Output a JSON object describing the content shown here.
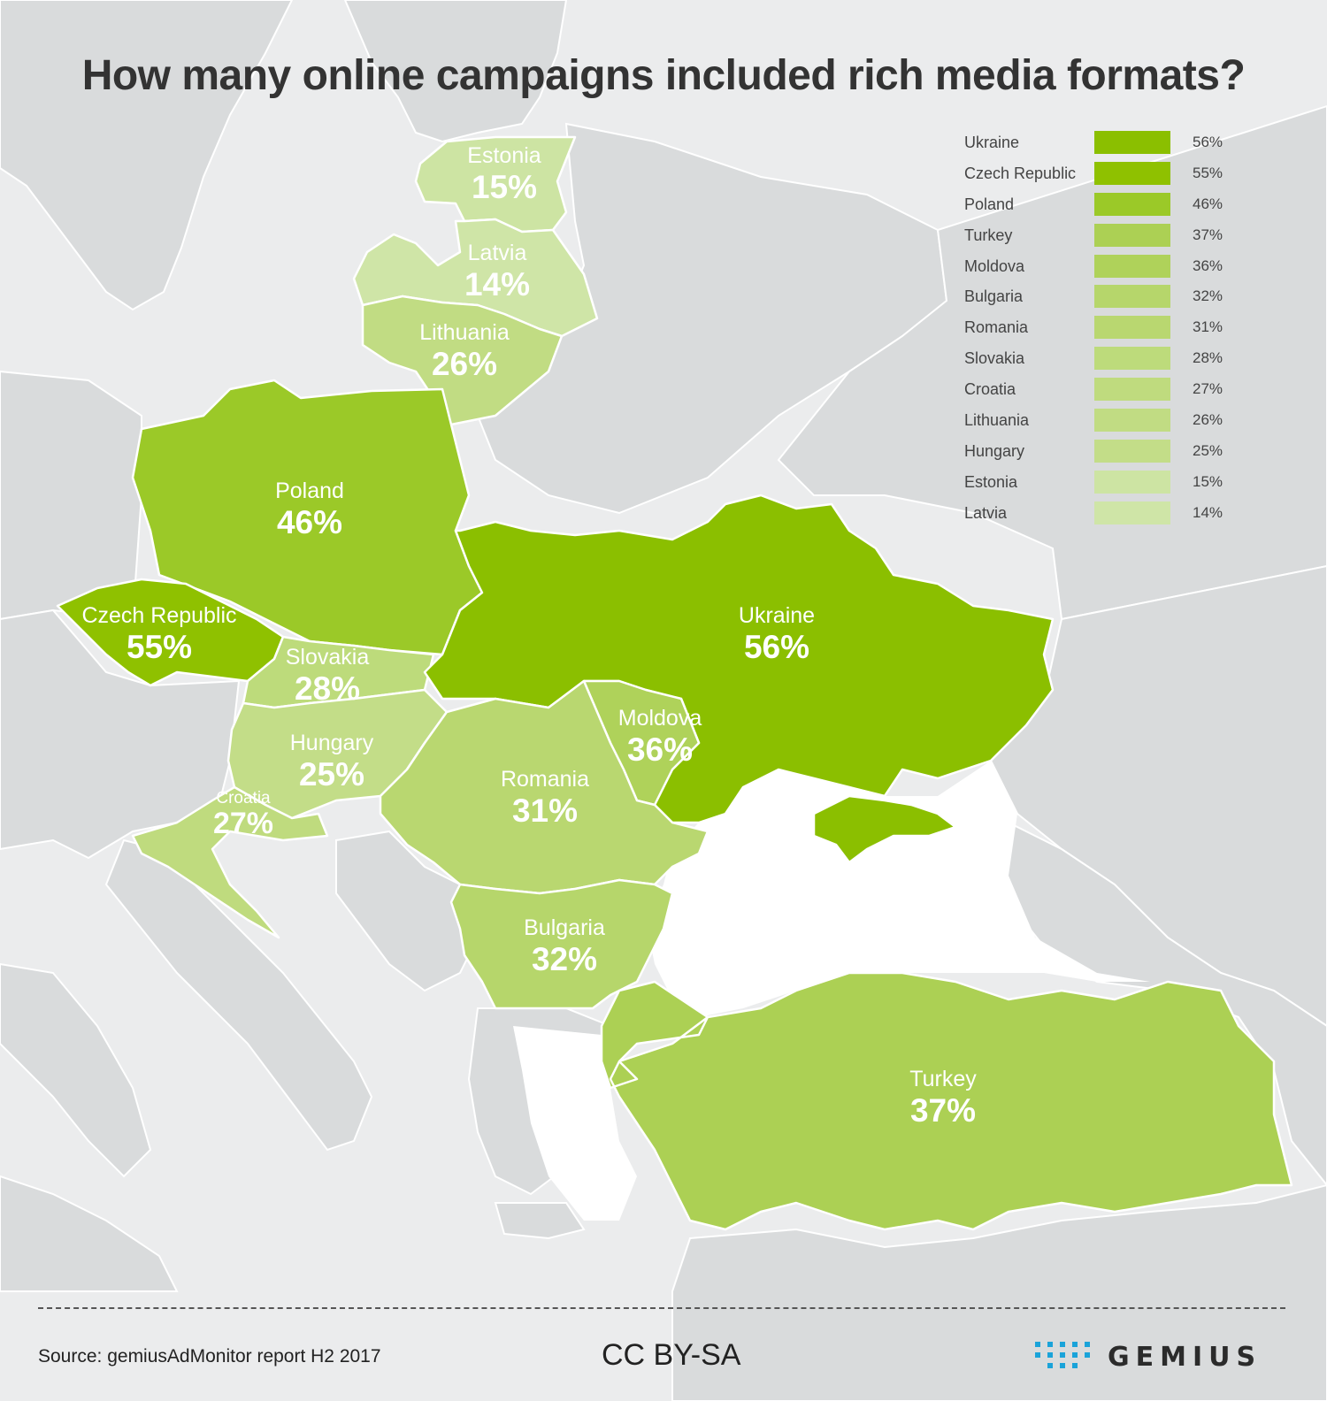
{
  "title": "How many online campaigns included rich media formats?",
  "colors": {
    "land_background": "#d9dbdc",
    "sea": "#ffffff",
    "border": "#ffffff",
    "scale": [
      "#8bbf00",
      "#9bc928",
      "#aed256",
      "#bedb7c",
      "#cce4a1"
    ]
  },
  "chart_data": {
    "type": "choropleth",
    "unit": "%",
    "countries": [
      {
        "name": "Ukraine",
        "value": 56,
        "label": "56%",
        "color": "#8bbf00"
      },
      {
        "name": "Czech Republic",
        "value": 55,
        "label": "55%",
        "color": "#8fc100"
      },
      {
        "name": "Poland",
        "value": 46,
        "label": "46%",
        "color": "#9bc928"
      },
      {
        "name": "Turkey",
        "value": 37,
        "label": "37%",
        "color": "#acd054"
      },
      {
        "name": "Moldova",
        "value": 36,
        "label": "36%",
        "color": "#afd25a"
      },
      {
        "name": "Bulgaria",
        "value": 32,
        "label": "32%",
        "color": "#b6d66b"
      },
      {
        "name": "Romania",
        "value": 31,
        "label": "31%",
        "color": "#b9d770"
      },
      {
        "name": "Slovakia",
        "value": 28,
        "label": "28%",
        "color": "#bddb7b"
      },
      {
        "name": "Croatia",
        "value": 27,
        "label": "27%",
        "color": "#bfdb7e"
      },
      {
        "name": "Lithuania",
        "value": 26,
        "label": "26%",
        "color": "#c1dc83"
      },
      {
        "name": "Hungary",
        "value": 25,
        "label": "25%",
        "color": "#c3dd88"
      },
      {
        "name": "Estonia",
        "value": 15,
        "label": "15%",
        "color": "#cde4a3"
      },
      {
        "name": "Latvia",
        "value": 14,
        "label": "14%",
        "color": "#cfe5a7"
      }
    ]
  },
  "footer": {
    "source": "Source: gemiusAdMonitor report H2 2017",
    "license": "CC BY-SA",
    "brand": "GEMIUS"
  }
}
